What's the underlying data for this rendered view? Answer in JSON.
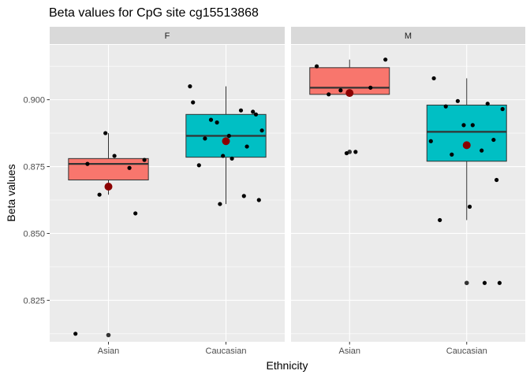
{
  "chart_data": {
    "type": "box",
    "title": "Beta values for CpG site cg15513868",
    "xlabel": "Ethnicity",
    "ylabel": "Beta values",
    "ylim": [
      0.8095,
      0.9205
    ],
    "y_ticks": [
      0.825,
      0.85,
      0.875,
      0.9
    ],
    "y_tick_labels": [
      "0.825",
      "0.850",
      "0.875",
      "0.900"
    ],
    "categories": [
      "Asian",
      "Caucasian"
    ],
    "grid": true,
    "colors": {
      "Asian": "#f8766d",
      "Caucasian": "#00bfc4",
      "mean_point": "#8b0000",
      "panel_bg": "#ebebeb",
      "strip_bg": "#d9d9d9",
      "grid": "#ffffff",
      "point": "#000000"
    },
    "facets": [
      {
        "label": "F",
        "boxes": [
          {
            "category": "Asian",
            "q1": 0.87,
            "median": 0.876,
            "q3": 0.878,
            "whisker_low": 0.8645,
            "whisker_high": 0.8875,
            "mean": 0.8675,
            "outliers": [
              0.812
            ],
            "points": [
              0.8125,
              0.8645,
              0.8745,
              0.876,
              0.8775,
              0.879,
              0.8875,
              0.8575
            ]
          },
          {
            "category": "Caucasian",
            "q1": 0.8785,
            "median": 0.8865,
            "q3": 0.8945,
            "whisker_low": 0.861,
            "whisker_high": 0.905,
            "mean": 0.8845,
            "outliers": [],
            "points": [
              0.899,
              0.8915,
              0.8825,
              0.8855,
              0.8885,
              0.878,
              0.879,
              0.8955,
              0.905,
              0.896,
              0.8925,
              0.8945,
              0.8865,
              0.8755,
              0.864,
              0.8625,
              0.861
            ]
          }
        ]
      },
      {
        "label": "M",
        "boxes": [
          {
            "category": "Asian",
            "q1": 0.902,
            "median": 0.9045,
            "q3": 0.912,
            "whisker_low": 0.902,
            "whisker_high": 0.915,
            "mean": 0.9025,
            "outliers": [
              0.8805
            ],
            "points": [
              0.9125,
              0.9035,
              0.9045,
              0.902,
              0.915,
              0.8805,
              0.88
            ]
          },
          {
            "category": "Caucasian",
            "q1": 0.877,
            "median": 0.888,
            "q3": 0.898,
            "whisker_low": 0.855,
            "whisker_high": 0.908,
            "mean": 0.883,
            "outliers": [
              0.8315
            ],
            "points": [
              0.908,
              0.8995,
              0.8985,
              0.8975,
              0.8965,
              0.8905,
              0.8905,
              0.885,
              0.8845,
              0.881,
              0.8795,
              0.87,
              0.86,
              0.855,
              0.8315,
              0.8315
            ]
          }
        ]
      }
    ]
  }
}
